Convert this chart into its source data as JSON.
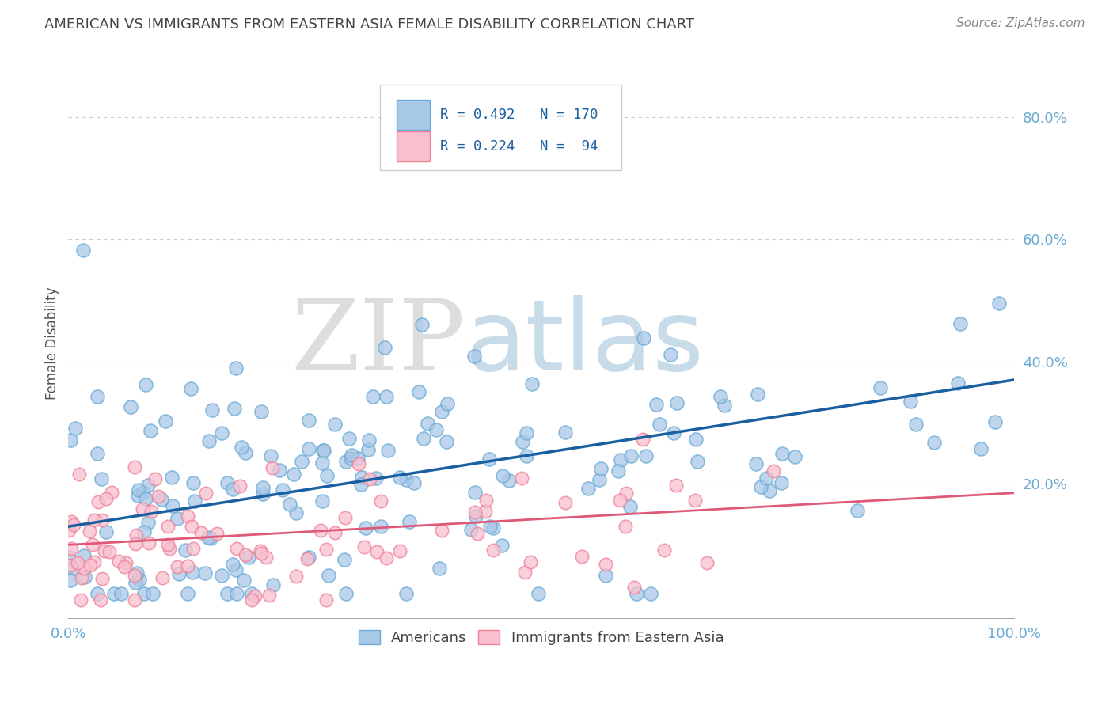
{
  "title": "AMERICAN VS IMMIGRANTS FROM EASTERN ASIA FEMALE DISABILITY CORRELATION CHART",
  "source": "Source: ZipAtlas.com",
  "ylabel": "Female Disability",
  "xlim": [
    0.0,
    1.0
  ],
  "ylim": [
    -0.02,
    0.88
  ],
  "blue_R": 0.492,
  "blue_N": 170,
  "pink_R": 0.224,
  "pink_N": 94,
  "blue_color": "#a8c8e8",
  "blue_edge_color": "#6aaad4",
  "pink_color": "#f8c0ce",
  "pink_edge_color": "#f08098",
  "blue_line_color": "#1a5fa0",
  "pink_line_color": "#e05878",
  "watermark_zip": "ZIP",
  "watermark_atlas": "atlas",
  "background_color": "#ffffff",
  "grid_color": "#cccccc",
  "title_color": "#444444",
  "source_color": "#888888",
  "ylabel_color": "#555555",
  "legend_label_blue": "Americans",
  "legend_label_pink": "Immigrants from Eastern Asia",
  "blue_line_x0": 0.0,
  "blue_line_x1": 1.0,
  "blue_line_y0": 0.13,
  "blue_line_y1": 0.37,
  "pink_line_x0": 0.0,
  "pink_line_x1": 1.0,
  "pink_line_y0": 0.1,
  "pink_line_y1": 0.185,
  "ytick_vals": [
    0.2,
    0.4,
    0.6,
    0.8
  ],
  "ytick_labels": [
    "20.0%",
    "40.0%",
    "60.0%",
    "80.0%"
  ],
  "xtick_vals": [
    0.0,
    1.0
  ],
  "xtick_labels": [
    "0.0%",
    "100.0%"
  ],
  "tick_color": "#6aaad4"
}
